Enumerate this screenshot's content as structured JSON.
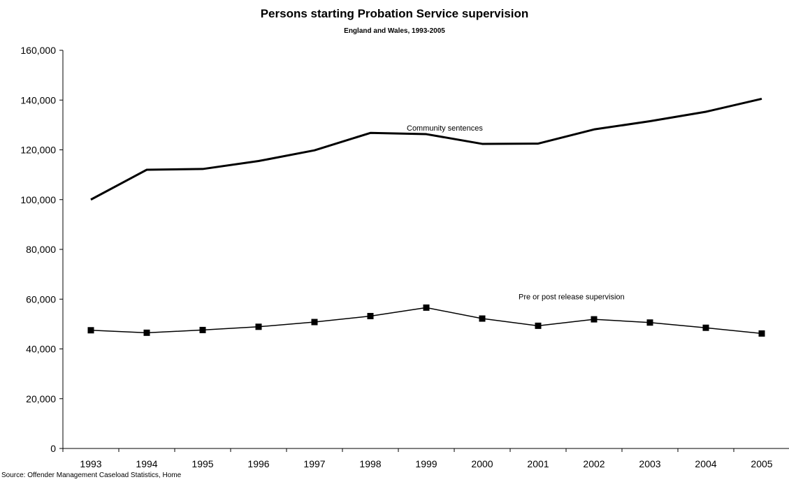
{
  "chart_data": {
    "type": "line",
    "title": "Persons starting Probation Service supervision",
    "subtitle": "England and Wales, 1993-2005",
    "xlabel": "",
    "ylabel": "",
    "categories": [
      "1993",
      "1994",
      "1995",
      "1996",
      "1997",
      "1998",
      "1999",
      "2000",
      "2001",
      "2002",
      "2003",
      "2004",
      "2005"
    ],
    "ylim": [
      0,
      160000
    ],
    "yticks": [
      0,
      20000,
      40000,
      60000,
      80000,
      100000,
      120000,
      140000,
      160000
    ],
    "ytick_labels": [
      "0",
      "20,000",
      "40,000",
      "60,000",
      "80,000",
      "100,000",
      "120,000",
      "140,000",
      "160,000"
    ],
    "grid": false,
    "legend": "none",
    "series": [
      {
        "name": "Community sentences",
        "values": [
          100000,
          112000,
          112300,
          115500,
          119800,
          126800,
          126300,
          122400,
          122500,
          128200,
          131500,
          135300,
          140500
        ],
        "color": "#000000",
        "marker": "none",
        "label_anchor": "1999"
      },
      {
        "name": "Pre or post release supervision",
        "values": [
          47500,
          46500,
          47600,
          48900,
          50800,
          53200,
          56600,
          52200,
          49300,
          51900,
          50600,
          48500,
          46200
        ],
        "color": "#000000",
        "marker": "square",
        "label_anchor": "2001"
      }
    ]
  },
  "source": "Source: Offender Management Caseload Statistics, Home"
}
